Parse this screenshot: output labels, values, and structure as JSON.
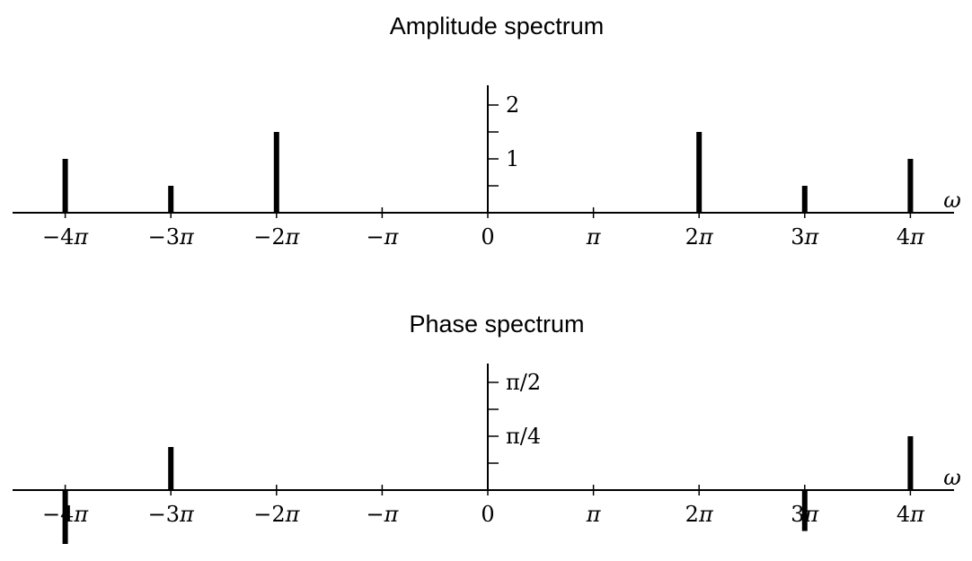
{
  "chart_data": [
    {
      "type": "bar",
      "title": "Amplitude spectrum",
      "xlabel": "ω",
      "x_tick_values": [
        -4,
        -3,
        -2,
        -1,
        0,
        1,
        2,
        3,
        4
      ],
      "x_tick_labels": [
        {
          "sign": "−",
          "coef": "4",
          "sym": "π"
        },
        {
          "sign": "−",
          "coef": "3",
          "sym": "π"
        },
        {
          "sign": "−",
          "coef": "2",
          "sym": "π"
        },
        {
          "sign": "−",
          "coef": "",
          "sym": "π"
        },
        {
          "sign": "",
          "coef": "0",
          "sym": ""
        },
        {
          "sign": "",
          "coef": "",
          "sym": "π"
        },
        {
          "sign": "",
          "coef": "2",
          "sym": "π"
        },
        {
          "sign": "",
          "coef": "3",
          "sym": "π"
        },
        {
          "sign": "",
          "coef": "4",
          "sym": "π"
        }
      ],
      "y_tick_values": [
        0.5,
        1,
        1.5,
        2
      ],
      "y_tick_labels": [
        "",
        "1",
        "",
        "2"
      ],
      "ylim": [
        0,
        2.35
      ],
      "x_unit": "multiples of π",
      "x": [
        -4,
        -3,
        -2,
        2,
        3,
        4
      ],
      "values": [
        1,
        0.5,
        1.5,
        1.5,
        0.5,
        1
      ]
    },
    {
      "type": "bar",
      "title": "Phase spectrum",
      "xlabel": "ω",
      "x_tick_values": [
        -4,
        -3,
        -2,
        -1,
        0,
        1,
        2,
        3,
        4
      ],
      "x_tick_labels": [
        {
          "sign": "−",
          "coef": "4",
          "sym": "π"
        },
        {
          "sign": "−",
          "coef": "3",
          "sym": "π"
        },
        {
          "sign": "−",
          "coef": "2",
          "sym": "π"
        },
        {
          "sign": "−",
          "coef": "",
          "sym": "π"
        },
        {
          "sign": "",
          "coef": "0",
          "sym": ""
        },
        {
          "sign": "",
          "coef": "",
          "sym": "π"
        },
        {
          "sign": "",
          "coef": "2",
          "sym": "π"
        },
        {
          "sign": "",
          "coef": "3",
          "sym": "π"
        },
        {
          "sign": "",
          "coef": "4",
          "sym": "π"
        }
      ],
      "y_tick_values": [
        0.125,
        0.25,
        0.375,
        0.5
      ],
      "y_tick_labels": [
        "",
        "π/4",
        "",
        "π/2"
      ],
      "y_unit": "multiples of π",
      "ylim": [
        -0.25,
        0.6
      ],
      "x_unit": "multiples of π",
      "x": [
        -4,
        -3,
        3,
        4
      ],
      "values": [
        -0.25,
        0.2,
        -0.19,
        0.25
      ]
    }
  ]
}
